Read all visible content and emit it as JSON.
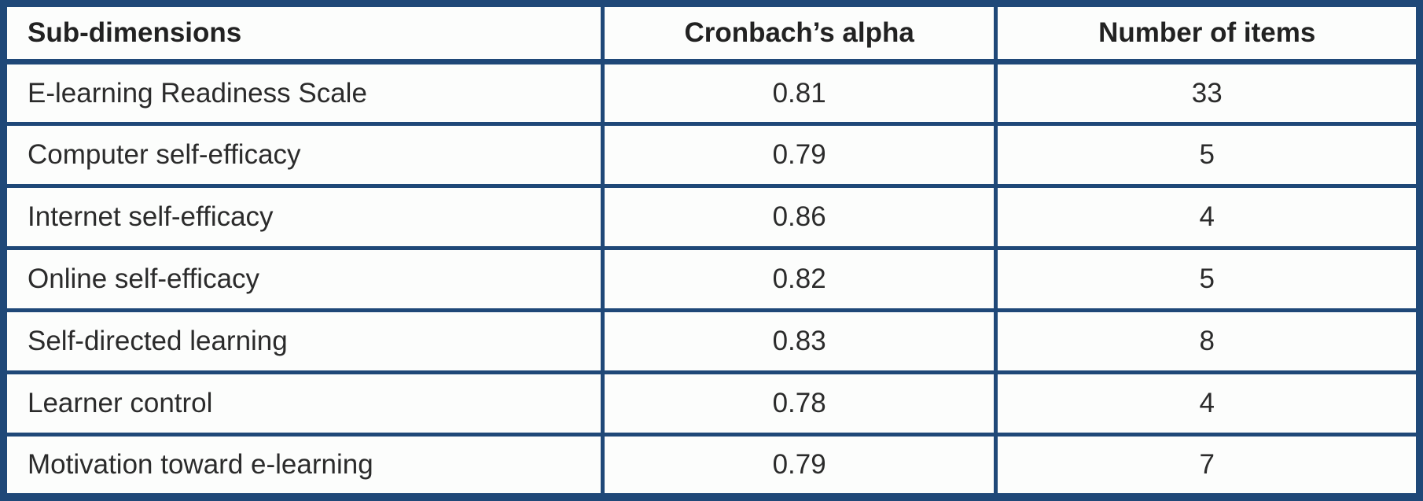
{
  "table": {
    "columns": {
      "sub_dimensions": "Sub-dimensions",
      "cronbachs_alpha": "Cronbach’s alpha",
      "number_of_items": "Number of items"
    },
    "rows": [
      {
        "label": "E-learning Readiness Scale",
        "alpha": "0.81",
        "items": "33"
      },
      {
        "label": "Computer self-efficacy",
        "alpha": "0.79",
        "items": "5"
      },
      {
        "label": "Internet self-efficacy",
        "alpha": "0.86",
        "items": "4"
      },
      {
        "label": "Online self-efficacy",
        "alpha": "0.82",
        "items": "5"
      },
      {
        "label": "Self-directed learning",
        "alpha": "0.83",
        "items": "8"
      },
      {
        "label": "Learner control",
        "alpha": "0.78",
        "items": "4"
      },
      {
        "label": "Motivation toward e-learning",
        "alpha": "0.79",
        "items": "7"
      }
    ]
  },
  "colors": {
    "border": "#1f4878",
    "text": "#2b2b2b",
    "background": "#fcfdfc"
  },
  "chart_data": {
    "type": "table",
    "title": "",
    "columns": [
      "Sub-dimensions",
      "Cronbach’s alpha",
      "Number of items"
    ],
    "rows": [
      [
        "E-learning Readiness Scale",
        0.81,
        33
      ],
      [
        "Computer self-efficacy",
        0.79,
        5
      ],
      [
        "Internet self-efficacy",
        0.86,
        4
      ],
      [
        "Online self-efficacy",
        0.82,
        5
      ],
      [
        "Self-directed learning",
        0.83,
        8
      ],
      [
        "Learner control",
        0.78,
        4
      ],
      [
        "Motivation toward e-learning",
        0.79,
        7
      ]
    ]
  }
}
